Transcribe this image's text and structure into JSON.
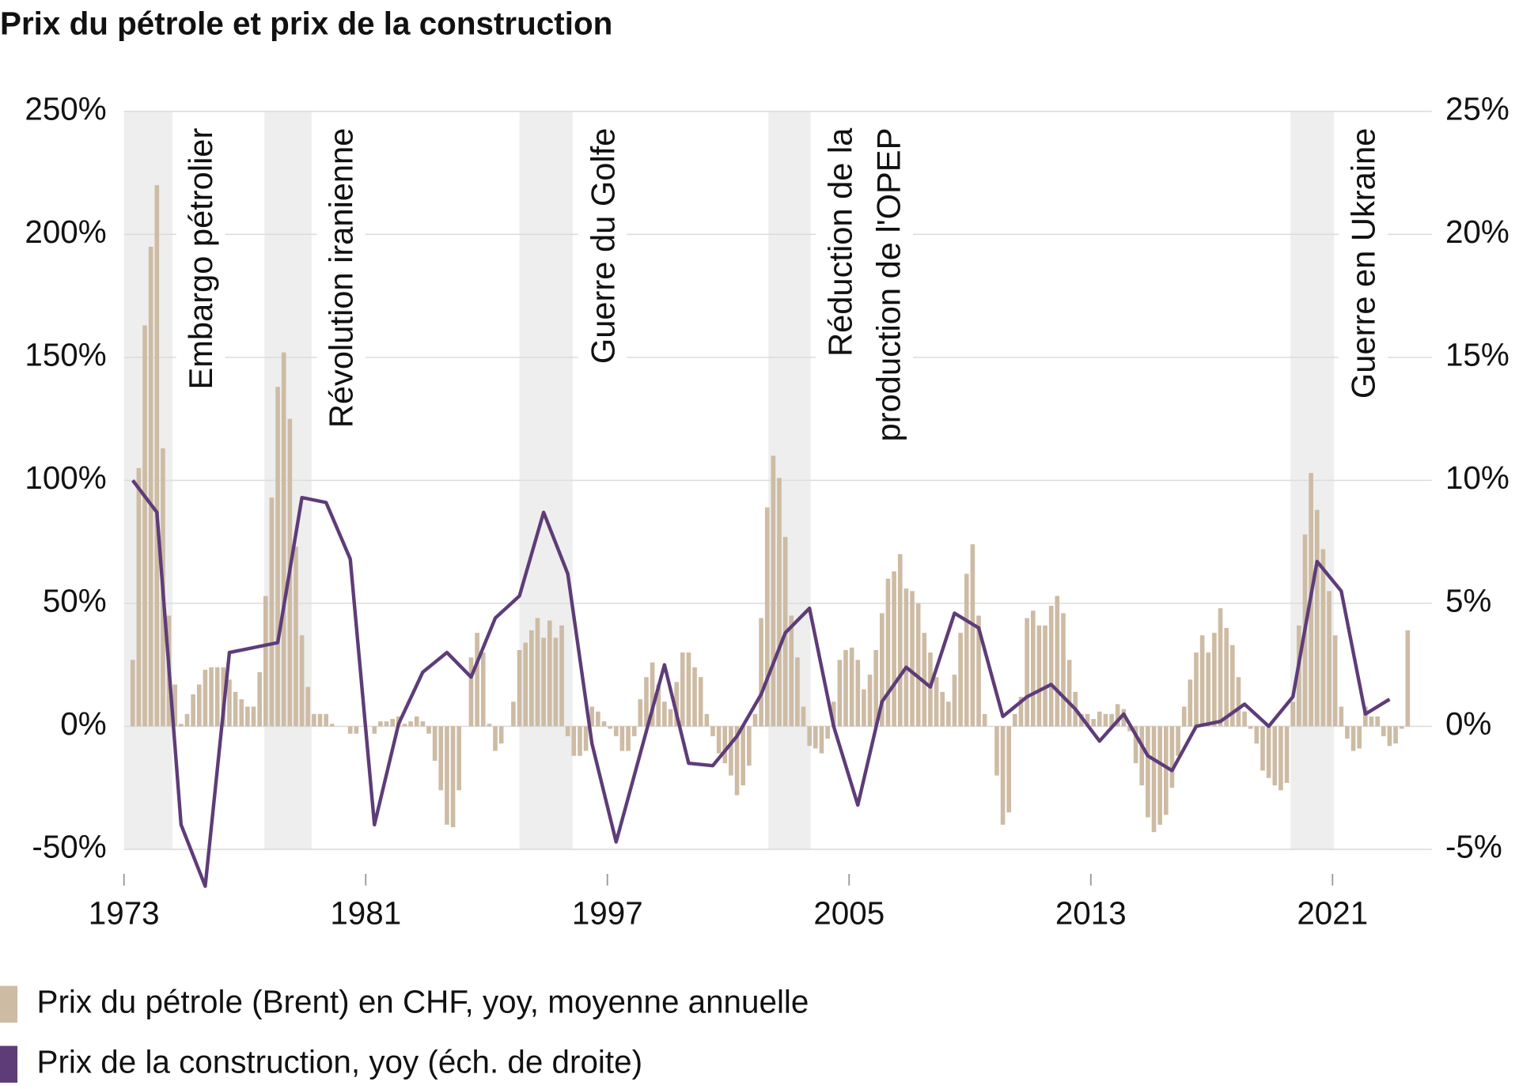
{
  "chart_data": {
    "type": "bar-line",
    "title": "Prix du pétrole et prix de la construction",
    "categories": [
      "1973",
      null,
      null,
      null,
      null,
      null,
      null,
      null,
      null,
      null,
      "1981",
      null,
      null,
      null,
      null,
      null,
      null,
      null,
      null,
      null,
      "1997",
      null,
      null,
      null,
      null,
      null,
      null,
      null,
      null,
      null,
      "2005",
      null,
      null,
      null,
      null,
      null,
      null,
      null,
      null,
      null,
      "2013",
      null,
      null,
      null,
      null,
      null,
      null,
      null,
      null,
      null,
      "2021",
      null,
      null
    ],
    "series": [
      {
        "name": "Prix du pétrole (Brent) en CHF, yoy, moyenne annuelle",
        "type": "bar",
        "color": "#cdbba4",
        "values": [
          [
            27,
            105,
            163,
            195
          ],
          [
            220,
            113,
            45,
            17
          ],
          [
            1,
            5,
            13,
            17
          ],
          [
            23,
            24,
            24,
            24
          ],
          [
            19,
            14,
            11,
            8
          ],
          [
            8,
            22,
            53,
            93
          ],
          [
            138,
            152,
            125,
            73
          ],
          [
            37,
            16,
            5,
            5
          ],
          [
            5,
            1,
            0,
            0
          ],
          [
            -3,
            -3,
            0,
            0
          ],
          [
            -3,
            2,
            2,
            3
          ],
          [
            4,
            1,
            2,
            4
          ],
          [
            2,
            -3,
            -14,
            -26
          ],
          [
            -40,
            -41,
            -26,
            0
          ],
          [
            28,
            38,
            30,
            1
          ],
          [
            -10,
            -7,
            0,
            10
          ],
          [
            31,
            34,
            39,
            44
          ],
          [
            36,
            43,
            36,
            41
          ],
          [
            -4,
            -12,
            -12,
            -10
          ],
          [
            8,
            6,
            2,
            -1
          ],
          [
            -4,
            -10,
            -10,
            -4
          ],
          [
            11,
            20,
            26,
            17
          ],
          [
            10,
            7,
            18,
            30
          ],
          [
            30,
            24,
            20,
            5
          ],
          [
            -4,
            -11,
            -15,
            -20
          ],
          [
            -28,
            -24,
            -16,
            5
          ],
          [
            44,
            89,
            110,
            101
          ],
          [
            77,
            45,
            28,
            8
          ],
          [
            -8,
            -9,
            -11,
            -5
          ],
          [
            10,
            27,
            31,
            32
          ],
          [
            27,
            15,
            21,
            31
          ],
          [
            46,
            60,
            63,
            70
          ],
          [
            56,
            55,
            50,
            38
          ],
          [
            30,
            20,
            14,
            10
          ],
          [
            21,
            38,
            62,
            74
          ],
          [
            45,
            5,
            0,
            -20
          ],
          [
            -40,
            -35,
            5,
            12
          ],
          [
            44,
            47,
            41,
            41
          ],
          [
            49,
            53,
            46,
            27
          ],
          [
            14,
            5,
            5,
            3
          ],
          [
            6,
            5,
            5,
            9
          ],
          [
            7,
            -2,
            -15,
            -24
          ],
          [
            -37,
            -43,
            -40,
            -36
          ],
          [
            -25,
            -12,
            8,
            19
          ],
          [
            30,
            37,
            30,
            38
          ],
          [
            48,
            40,
            33,
            20
          ],
          [
            6,
            -1,
            -7,
            -18
          ],
          [
            -21,
            -24,
            -26,
            -23
          ],
          [
            10,
            41,
            78,
            103
          ],
          [
            88,
            72,
            55,
            37
          ],
          [
            8,
            -5,
            -10,
            -9
          ],
          [
            8,
            4,
            4,
            -4
          ],
          [
            -8,
            -7,
            -1,
            39
          ]
        ]
      },
      {
        "name": "Prix de la construction, yoy (éch. de droite)",
        "type": "line",
        "color": "#5e3c78",
        "axis": "y2",
        "values": [
          10,
          8.7,
          -4,
          -6.5,
          3,
          3.2,
          3.4,
          9.3,
          9.1,
          6.8,
          -4,
          0.1,
          2.2,
          3,
          2,
          4.4,
          5.3,
          8.7,
          6.2,
          -0.7,
          -4.7,
          -1.1,
          2.5,
          -1.5,
          -1.6,
          -0.4,
          1.3,
          3.8,
          4.8,
          0,
          -3.2,
          1,
          2.4,
          1.6,
          4.6,
          4,
          0.4,
          1.2,
          1.7,
          0.7,
          -0.6,
          0.5,
          -1.2,
          -1.8,
          0,
          0.2,
          0.9,
          0,
          1.2,
          6.7,
          5.5,
          0.5,
          1.1
        ]
      }
    ],
    "ylim": [
      -60,
      250
    ],
    "yticks": [
      {
        "value": -50,
        "label": "-50%"
      },
      {
        "value": 0,
        "label": "0%"
      },
      {
        "value": 50,
        "label": "50%"
      },
      {
        "value": 100,
        "label": "100%"
      },
      {
        "value": 150,
        "label": "150%"
      },
      {
        "value": 200,
        "label": "200%"
      },
      {
        "value": 250,
        "label": "250%"
      }
    ],
    "y2lim": [
      -6,
      25
    ],
    "y2ticks": [
      {
        "value": -5,
        "label": "-5%"
      },
      {
        "value": 0,
        "label": "0%"
      },
      {
        "value": 5,
        "label": "5%"
      },
      {
        "value": 10,
        "label": "10%"
      },
      {
        "value": 15,
        "label": "15%"
      },
      {
        "value": 20,
        "label": "20%"
      },
      {
        "value": 25,
        "label": "25%"
      }
    ],
    "grid": true,
    "annotations": [
      [
        "Embargo pétrolier"
      ],
      [
        "Révolution iranienne"
      ],
      [
        "Guerre du Golfe"
      ],
      [
        "Réduction de la",
        "production de l'OPEP"
      ],
      [
        "Guerre en Ukraine"
      ]
    ]
  }
}
